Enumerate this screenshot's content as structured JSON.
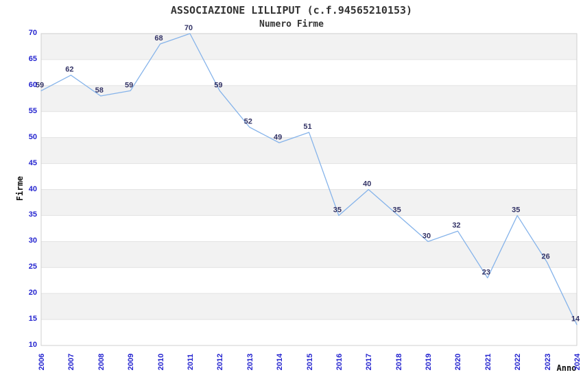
{
  "chart_data": {
    "type": "line",
    "title": "ASSOCIAZIONE LILLIPUT (c.f.94565210153)",
    "subtitle": "Numero Firme",
    "xlabel": "Anno",
    "ylabel": "Firme",
    "categories": [
      "2006",
      "2007",
      "2008",
      "2009",
      "2010",
      "2011",
      "2012",
      "2013",
      "2014",
      "2015",
      "2016",
      "2017",
      "2018",
      "2019",
      "2020",
      "2021",
      "2022",
      "2023",
      "2024"
    ],
    "values": [
      59,
      62,
      58,
      59,
      68,
      70,
      59,
      52,
      49,
      51,
      35,
      40,
      35,
      30,
      32,
      23,
      35,
      26,
      14
    ],
    "ylim": [
      10,
      70
    ],
    "ytick_step": 5,
    "yticks": [
      10,
      15,
      20,
      25,
      30,
      35,
      40,
      45,
      50,
      55,
      60,
      65,
      70
    ],
    "grid": true,
    "legend": false,
    "point_labels_shown": true,
    "band_fill_alternating": true
  },
  "colors": {
    "line": "#85B3EA",
    "tick_label": "#2323CF",
    "point_label": "#333366",
    "band_gray": "#F2F2F2",
    "band_white": "#FFFFFF",
    "grid_line": "#E2E2E2",
    "plot_border": "#CFCFCF",
    "title_text": "#333333",
    "axis_title_text": "#111111",
    "background": "#FFFFFF"
  }
}
